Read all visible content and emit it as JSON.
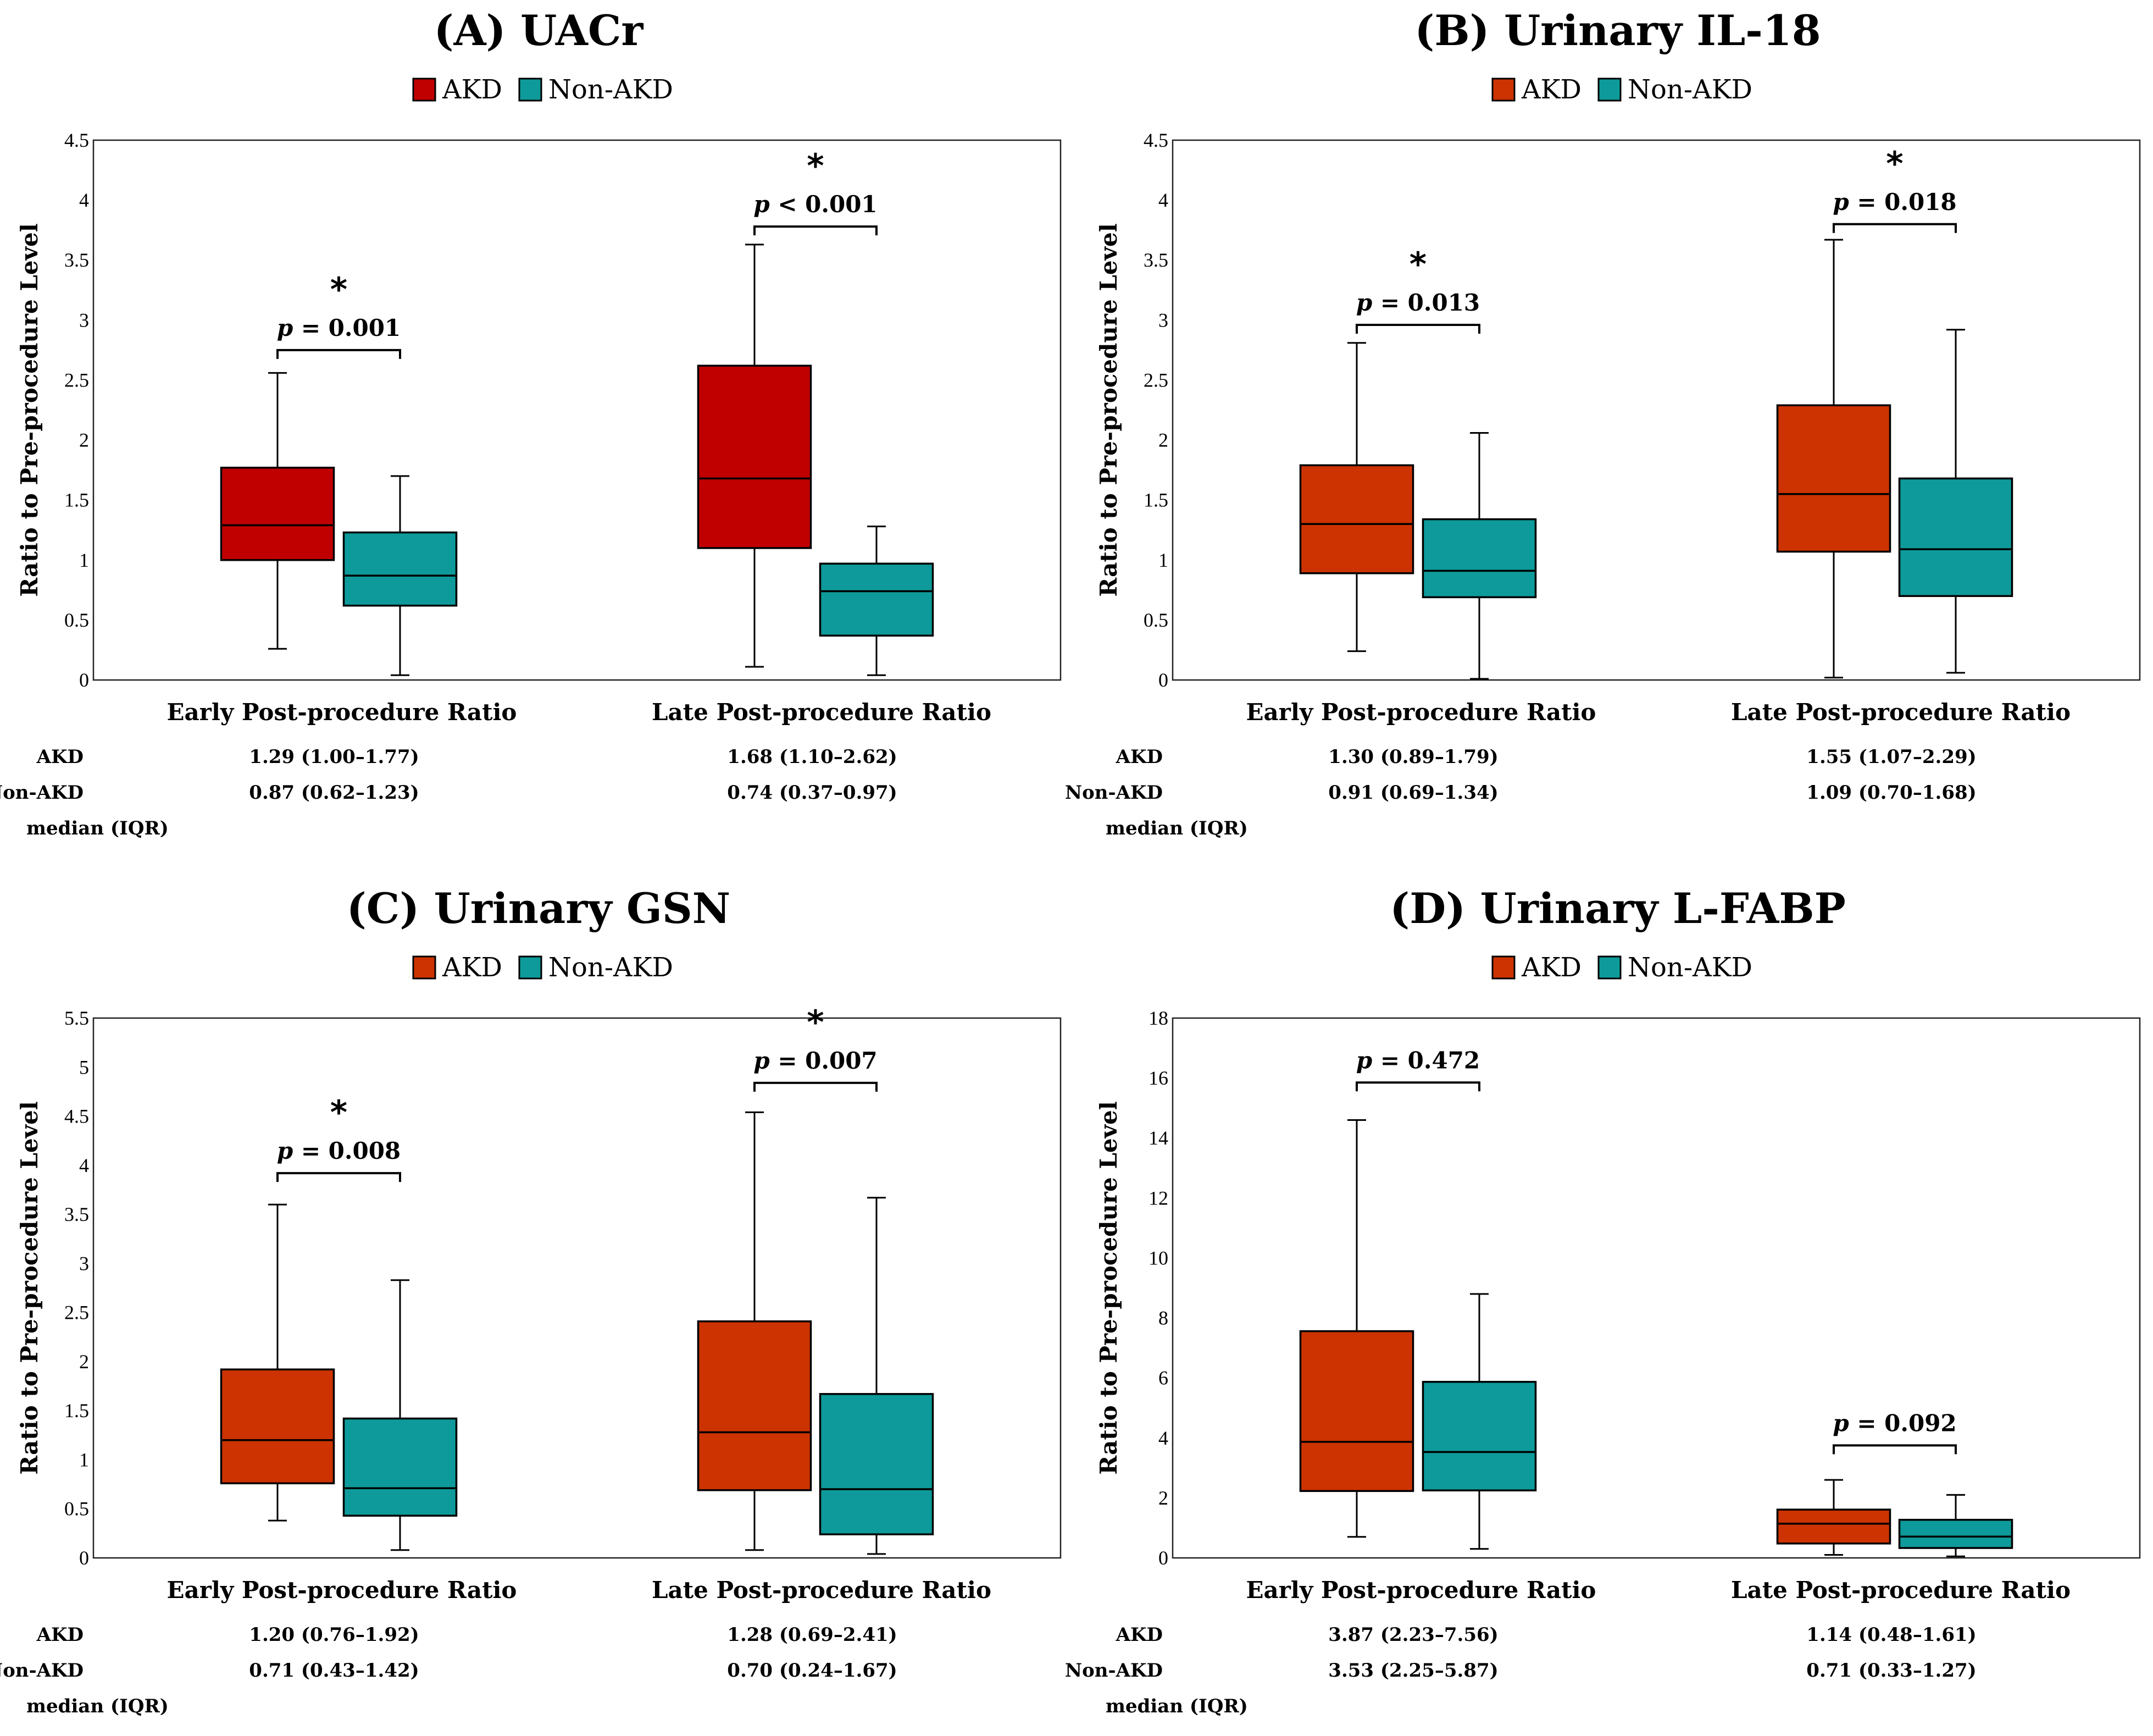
{
  "colors": {
    "non_akd": "#0e9a9a",
    "stroke": "#000000"
  },
  "chart_data": [
    {
      "type": "boxplot",
      "title": "(A) UACr",
      "ylabel": "Ratio to Pre-procedure Level",
      "ylim": [
        0,
        4.5
      ],
      "yticks": [
        "0",
        "0.5",
        "1",
        "1.5",
        "2",
        "2.5",
        "3",
        "3.5",
        "4",
        "4.5"
      ],
      "ytick_values": [
        0,
        0.5,
        1,
        1.5,
        2,
        2.5,
        3,
        3.5,
        4,
        4.5
      ],
      "akd_color": "#c00000",
      "legend": [
        "AKD",
        "Non-AKD"
      ],
      "categories": [
        "Early Post-procedure Ratio",
        "Late Post-procedure Ratio"
      ],
      "series": [
        {
          "name": "AKD",
          "boxes": [
            {
              "min": 0.26,
              "q1": 1.0,
              "median": 1.29,
              "q3": 1.77,
              "max": 2.56
            },
            {
              "min": 0.11,
              "q1": 1.1,
              "median": 1.68,
              "q3": 2.62,
              "max": 3.63
            }
          ]
        },
        {
          "name": "Non-AKD",
          "boxes": [
            {
              "min": 0.04,
              "q1": 0.62,
              "median": 0.87,
              "q3": 1.23,
              "max": 1.7
            },
            {
              "min": 0.04,
              "q1": 0.37,
              "median": 0.74,
              "q3": 0.97,
              "max": 1.28
            }
          ]
        }
      ],
      "comparisons": [
        {
          "p_label": "p",
          "p_value": "= 0.001",
          "star": "*",
          "bracket_y": 2.75
        },
        {
          "p_label": "p",
          "p_value": "< 0.001",
          "star": "*",
          "bracket_y": 3.78
        }
      ],
      "table": {
        "row_labels": [
          "AKD",
          "Non-AKD",
          "median (IQR)"
        ],
        "akd": [
          "1.29 (1.00–1.77)",
          "1.68 (1.10–2.62)"
        ],
        "non_akd": [
          "0.87 (0.62–1.23)",
          "0.74 (0.37–0.97)"
        ]
      }
    },
    {
      "type": "boxplot",
      "title": "(B) Urinary IL-18",
      "ylabel": "Ratio to Pre-procedure Level",
      "ylim": [
        0,
        4.5
      ],
      "yticks": [
        "0",
        "0.5",
        "1",
        "1.5",
        "2",
        "2.5",
        "3",
        "3.5",
        "4",
        "4.5"
      ],
      "ytick_values": [
        0,
        0.5,
        1,
        1.5,
        2,
        2.5,
        3,
        3.5,
        4,
        4.5
      ],
      "akd_color": "#cc3300",
      "legend": [
        "AKD",
        "Non-AKD"
      ],
      "categories": [
        "Early Post-procedure Ratio",
        "Late Post-procedure Ratio"
      ],
      "series": [
        {
          "name": "AKD",
          "boxes": [
            {
              "min": 0.24,
              "q1": 0.89,
              "median": 1.3,
              "q3": 1.79,
              "max": 2.81
            },
            {
              "min": 0.02,
              "q1": 1.07,
              "median": 1.55,
              "q3": 2.29,
              "max": 3.67
            }
          ]
        },
        {
          "name": "Non-AKD",
          "boxes": [
            {
              "min": 0.01,
              "q1": 0.69,
              "median": 0.91,
              "q3": 1.34,
              "max": 2.06
            },
            {
              "min": 0.06,
              "q1": 0.7,
              "median": 1.09,
              "q3": 1.68,
              "max": 2.92
            }
          ]
        }
      ],
      "comparisons": [
        {
          "p_label": "p",
          "p_value": "= 0.013",
          "star": "*",
          "bracket_y": 2.96
        },
        {
          "p_label": "p",
          "p_value": "= 0.018",
          "star": "*",
          "bracket_y": 3.8
        }
      ],
      "table": {
        "row_labels": [
          "AKD",
          "Non-AKD",
          "median (IQR)"
        ],
        "akd": [
          "1.30 (0.89–1.79)",
          "1.55 (1.07–2.29)"
        ],
        "non_akd": [
          "0.91 (0.69–1.34)",
          "1.09 (0.70–1.68)"
        ]
      }
    },
    {
      "type": "boxplot",
      "title": "(C) Urinary GSN",
      "ylabel": "Ratio to Pre-procedure Level",
      "ylim": [
        0,
        5.5
      ],
      "yticks": [
        "0",
        "0.5",
        "1",
        "1.5",
        "2",
        "2.5",
        "3",
        "3.5",
        "4",
        "4.5",
        "5",
        "5.5"
      ],
      "ytick_values": [
        0,
        0.5,
        1,
        1.5,
        2,
        2.5,
        3,
        3.5,
        4,
        4.5,
        5,
        5.5
      ],
      "akd_color": "#cc3300",
      "legend": [
        "AKD",
        "Non-AKD"
      ],
      "categories": [
        "Early Post-procedure Ratio",
        "Late Post-procedure Ratio"
      ],
      "series": [
        {
          "name": "AKD",
          "boxes": [
            {
              "min": 0.38,
              "q1": 0.76,
              "median": 1.2,
              "q3": 1.92,
              "max": 3.6
            },
            {
              "min": 0.08,
              "q1": 0.69,
              "median": 1.28,
              "q3": 2.41,
              "max": 4.54
            }
          ]
        },
        {
          "name": "Non-AKD",
          "boxes": [
            {
              "min": 0.08,
              "q1": 0.43,
              "median": 0.71,
              "q3": 1.42,
              "max": 2.83
            },
            {
              "min": 0.04,
              "q1": 0.24,
              "median": 0.7,
              "q3": 1.67,
              "max": 3.67
            }
          ]
        }
      ],
      "comparisons": [
        {
          "p_label": "p",
          "p_value": "= 0.008",
          "star": "*",
          "bracket_y": 3.92
        },
        {
          "p_label": "p",
          "p_value": "= 0.007",
          "star": "*",
          "bracket_y": 4.84
        }
      ],
      "table": {
        "row_labels": [
          "AKD",
          "Non-AKD",
          "median (IQR)"
        ],
        "akd": [
          "1.20 (0.76–1.92)",
          "1.28 (0.69–2.41)"
        ],
        "non_akd": [
          "0.71 (0.43–1.42)",
          "0.70 (0.24–1.67)"
        ]
      }
    },
    {
      "type": "boxplot",
      "title": "(D) Urinary L-FABP",
      "ylabel": "Ratio to Pre-procedure Level",
      "ylim": [
        0,
        18
      ],
      "yticks": [
        "0",
        "2",
        "4",
        "6",
        "8",
        "10",
        "12",
        "14",
        "16",
        "18"
      ],
      "ytick_values": [
        0,
        2,
        4,
        6,
        8,
        10,
        12,
        14,
        16,
        18
      ],
      "akd_color": "#cc3300",
      "legend": [
        "AKD",
        "Non-AKD"
      ],
      "categories": [
        "Early Post-procedure Ratio",
        "Late Post-procedure Ratio"
      ],
      "series": [
        {
          "name": "AKD",
          "boxes": [
            {
              "min": 0.7,
              "q1": 2.23,
              "median": 3.87,
              "q3": 7.56,
              "max": 14.6
            },
            {
              "min": 0.1,
              "q1": 0.48,
              "median": 1.14,
              "q3": 1.61,
              "max": 2.6
            }
          ]
        },
        {
          "name": "Non-AKD",
          "boxes": [
            {
              "min": 0.3,
              "q1": 2.25,
              "median": 3.53,
              "q3": 5.87,
              "max": 8.8
            },
            {
              "min": 0.05,
              "q1": 0.33,
              "median": 0.71,
              "q3": 1.27,
              "max": 2.1
            }
          ]
        }
      ],
      "comparisons": [
        {
          "p_label": "p",
          "p_value": "= 0.472",
          "star": "",
          "bracket_y": 15.85
        },
        {
          "p_label": "p",
          "p_value": "= 0.092",
          "star": "",
          "bracket_y": 3.75
        }
      ],
      "table": {
        "row_labels": [
          "AKD",
          "Non-AKD",
          "median (IQR)"
        ],
        "akd": [
          "3.87 (2.23–7.56)",
          "1.14 (0.48–1.61)"
        ],
        "non_akd": [
          "3.53 (2.25–5.87)",
          "0.71 (0.33–1.27)"
        ]
      }
    }
  ]
}
